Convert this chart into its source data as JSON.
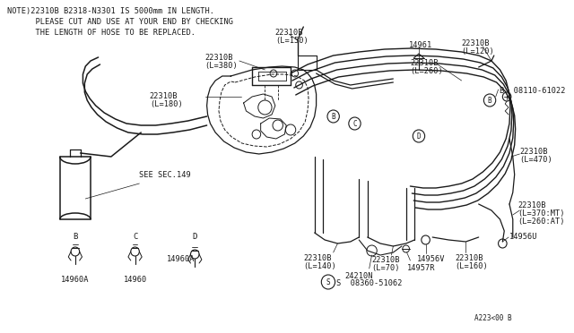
{
  "bg_color": "#ffffff",
  "line_color": "#1a1a1a",
  "text_color": "#1a1a1a",
  "note_lines": [
    "NOTE)22310B B2318-N3301 IS 5000mm IN LENGTH.",
    "      PLEASE CUT AND USE AT YOUR END BY CHECKING",
    "      THE LENGTH OF HOSE TO BE REPLACED."
  ],
  "figsize": [
    6.4,
    3.72
  ],
  "dpi": 100
}
